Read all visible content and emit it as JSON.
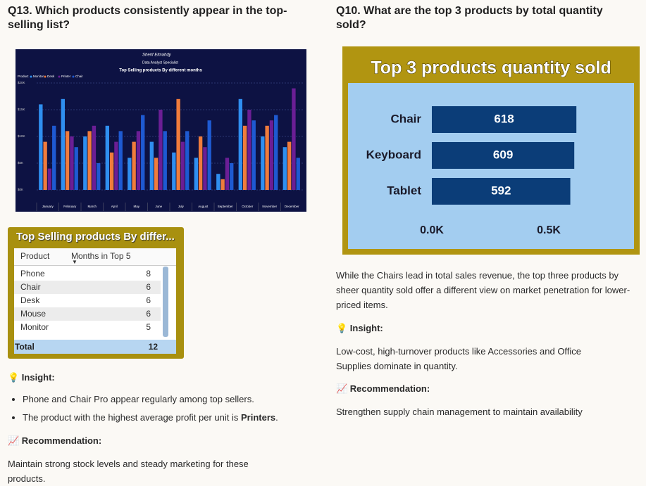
{
  "left_column": {
    "heading": "Q13. Which products consistently appear in the top-selling list?",
    "table": {
      "title": "Top Selling products By differ...",
      "columns": [
        "Product",
        "Months in Top 5"
      ],
      "rows": [
        [
          "Phone",
          "8"
        ],
        [
          "Chair",
          "6"
        ],
        [
          "Desk",
          "6"
        ],
        [
          "Mouse",
          "6"
        ],
        [
          "Monitor",
          "5"
        ]
      ],
      "total": [
        "Total",
        "12"
      ]
    },
    "insight_label": "💡 Insight:",
    "bullets": [
      {
        "text": "Phone and Chair Pro appear regularly among top sellers."
      },
      {
        "text": "The product with the highest average profit per unit is ",
        "bold": "Printers",
        "after": "."
      }
    ],
    "recommendation_label": "📈 Recommendation:",
    "recommendation": "Maintain strong stock levels and steady marketing for these products."
  },
  "right_column": {
    "heading": "Q10. What are the top 3 products by total quantity sold?",
    "paragraph": "While the Chairs lead in total sales revenue, the top three products by sheer quantity sold offer a different view on market penetration for lower-priced items.",
    "insight_label": "💡 Insight:",
    "insight": "Low-cost, high-turnover products like Accessories and Office Supplies dominate in quantity.",
    "recommendation_label": "📈 Recommendation:",
    "recommendation": "Strengthen supply chain management to maintain availability"
  },
  "chart_data": [
    {
      "type": "bar",
      "title": "Top Selling products By different months",
      "author": "Sherif Elmahdy",
      "author_role": "Data Analyst Specialist",
      "legend_title": "Product",
      "categories": [
        "January",
        "February",
        "March",
        "April",
        "May",
        "June",
        "July",
        "August",
        "September",
        "October",
        "November",
        "December"
      ],
      "series": [
        {
          "name": "Monitor",
          "color": "#2f8ff0",
          "values": [
            16,
            17,
            10,
            12,
            6,
            9,
            7,
            6,
            3,
            17,
            10,
            8
          ]
        },
        {
          "name": "Desk",
          "color": "#f07c3c",
          "values": [
            9,
            11,
            11,
            7,
            9,
            6,
            17,
            10,
            2,
            12,
            12,
            9
          ]
        },
        {
          "name": "Printer",
          "color": "#6b1e95",
          "values": [
            4,
            10,
            12,
            9,
            11,
            15,
            9,
            8,
            6,
            15,
            13,
            19
          ]
        },
        {
          "name": "Chair",
          "color": "#1e5ad2",
          "values": [
            12,
            8,
            5,
            11,
            14,
            11,
            11,
            13,
            5,
            13,
            14,
            6
          ]
        }
      ],
      "ylim": [
        0,
        20
      ],
      "yticks": [
        {
          "value": 0,
          "label": "$0K"
        },
        {
          "value": 5,
          "label": "$5K"
        },
        {
          "value": 10,
          "label": "$10K"
        },
        {
          "value": 15,
          "label": "$15K"
        },
        {
          "value": 20,
          "label": "$20K"
        }
      ],
      "grid": true
    },
    {
      "type": "bar",
      "orientation": "horizontal",
      "title": "Top 3 products quantity sold",
      "categories": [
        "Chair",
        "Keyboard",
        "Tablet"
      ],
      "values": [
        618,
        609,
        592
      ],
      "color": "#0b3d78",
      "xlim": [
        0,
        700
      ],
      "xticks": [
        {
          "value": 0,
          "label": "0.0K"
        },
        {
          "value": 500,
          "label": "0.5K"
        }
      ]
    }
  ]
}
